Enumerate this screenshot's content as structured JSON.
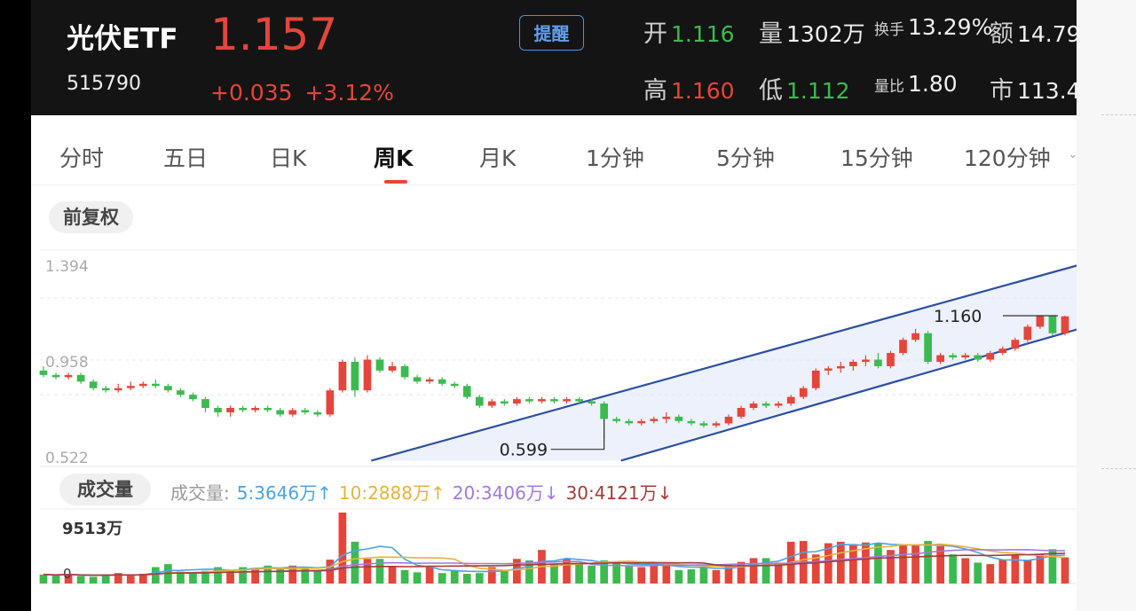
{
  "header": {
    "name": "光伏ETF",
    "code": "515790",
    "price": "1.157",
    "change": "+0.035",
    "change_pct": "+3.12%",
    "alert_button": "提醒",
    "stats": {
      "open_label": "开",
      "open": "1.116",
      "volume_label": "量",
      "volume": "1302万",
      "turnover_label": "换手",
      "turnover": "13.29%",
      "amount_label": "额",
      "amount": "14.79",
      "high_label": "高",
      "high": "1.160",
      "low_label": "低",
      "low": "1.112",
      "vol_ratio_label": "量比",
      "vol_ratio": "1.80",
      "mktcap_label": "市",
      "mktcap": "113.4"
    }
  },
  "tabs": [
    "分时",
    "五日",
    "日K",
    "周K",
    "月K",
    "1分钟",
    "5分钟",
    "15分钟",
    "120分钟"
  ],
  "active_tab": "周K",
  "adjust_pill": "前复权",
  "volume_pill": "成交量",
  "price_axis": [
    "1.394",
    "0.958",
    "0.522"
  ],
  "markers": {
    "high": "1.160",
    "low": "0.599"
  },
  "volume": {
    "label": "成交量:",
    "ma5": "5:3646万↑",
    "ma10": "10:2888万↑",
    "ma20": "20:3406万↓",
    "ma30": "30:4121万↓",
    "max": "9513万",
    "zero": "0"
  },
  "colors": {
    "up": "#e5453a",
    "down": "#3cba50",
    "ma5": "#4aa3e8",
    "ma10": "#e8b23a",
    "ma20": "#a07ae0",
    "ma30": "#a33b3b",
    "channel": "#2c4fa3"
  },
  "chart_data": {
    "type": "candlestick",
    "period": "weekly",
    "ylim": [
      0.522,
      1.394
    ],
    "candles": [
      [
        0.91,
        0.89,
        0.93,
        0.88
      ],
      [
        0.89,
        0.88,
        0.9,
        0.87
      ],
      [
        0.88,
        0.89,
        0.9,
        0.87
      ],
      [
        0.89,
        0.86,
        0.9,
        0.85
      ],
      [
        0.86,
        0.83,
        0.87,
        0.82
      ],
      [
        0.83,
        0.82,
        0.84,
        0.81
      ],
      [
        0.82,
        0.83,
        0.85,
        0.81
      ],
      [
        0.83,
        0.84,
        0.86,
        0.82
      ],
      [
        0.84,
        0.85,
        0.86,
        0.83
      ],
      [
        0.85,
        0.84,
        0.87,
        0.83
      ],
      [
        0.84,
        0.82,
        0.85,
        0.81
      ],
      [
        0.82,
        0.8,
        0.83,
        0.79
      ],
      [
        0.8,
        0.78,
        0.81,
        0.77
      ],
      [
        0.78,
        0.74,
        0.79,
        0.72
      ],
      [
        0.74,
        0.72,
        0.75,
        0.7
      ],
      [
        0.72,
        0.74,
        0.75,
        0.7
      ],
      [
        0.74,
        0.73,
        0.75,
        0.72
      ],
      [
        0.73,
        0.74,
        0.75,
        0.72
      ],
      [
        0.74,
        0.73,
        0.75,
        0.72
      ],
      [
        0.73,
        0.71,
        0.74,
        0.7
      ],
      [
        0.71,
        0.73,
        0.74,
        0.7
      ],
      [
        0.73,
        0.72,
        0.74,
        0.71
      ],
      [
        0.72,
        0.71,
        0.73,
        0.7
      ],
      [
        0.71,
        0.82,
        0.83,
        0.7
      ],
      [
        0.82,
        0.95,
        0.96,
        0.81
      ],
      [
        0.95,
        0.82,
        0.97,
        0.79
      ],
      [
        0.82,
        0.96,
        0.98,
        0.81
      ],
      [
        0.96,
        0.91,
        0.97,
        0.9
      ],
      [
        0.91,
        0.93,
        0.95,
        0.9
      ],
      [
        0.93,
        0.88,
        0.94,
        0.87
      ],
      [
        0.88,
        0.86,
        0.89,
        0.85
      ],
      [
        0.86,
        0.87,
        0.88,
        0.85
      ],
      [
        0.87,
        0.85,
        0.88,
        0.84
      ],
      [
        0.85,
        0.84,
        0.86,
        0.83
      ],
      [
        0.84,
        0.79,
        0.85,
        0.78
      ],
      [
        0.79,
        0.75,
        0.8,
        0.74
      ],
      [
        0.75,
        0.77,
        0.78,
        0.74
      ],
      [
        0.77,
        0.76,
        0.78,
        0.75
      ],
      [
        0.76,
        0.78,
        0.79,
        0.75
      ],
      [
        0.78,
        0.77,
        0.79,
        0.76
      ],
      [
        0.77,
        0.78,
        0.79,
        0.76
      ],
      [
        0.78,
        0.77,
        0.79,
        0.76
      ],
      [
        0.77,
        0.78,
        0.79,
        0.76
      ],
      [
        0.78,
        0.77,
        0.79,
        0.76
      ],
      [
        0.77,
        0.76,
        0.78,
        0.75
      ],
      [
        0.76,
        0.69,
        0.77,
        0.6
      ],
      [
        0.69,
        0.68,
        0.7,
        0.67
      ],
      [
        0.68,
        0.67,
        0.69,
        0.66
      ],
      [
        0.67,
        0.68,
        0.69,
        0.66
      ],
      [
        0.68,
        0.69,
        0.7,
        0.67
      ],
      [
        0.69,
        0.7,
        0.72,
        0.67
      ],
      [
        0.7,
        0.68,
        0.71,
        0.67
      ],
      [
        0.68,
        0.67,
        0.69,
        0.66
      ],
      [
        0.67,
        0.66,
        0.68,
        0.65
      ],
      [
        0.66,
        0.67,
        0.68,
        0.65
      ],
      [
        0.67,
        0.7,
        0.71,
        0.66
      ],
      [
        0.7,
        0.74,
        0.75,
        0.69
      ],
      [
        0.74,
        0.76,
        0.77,
        0.73
      ],
      [
        0.76,
        0.75,
        0.77,
        0.74
      ],
      [
        0.75,
        0.76,
        0.77,
        0.74
      ],
      [
        0.76,
        0.79,
        0.8,
        0.75
      ],
      [
        0.79,
        0.83,
        0.84,
        0.78
      ],
      [
        0.83,
        0.91,
        0.92,
        0.82
      ],
      [
        0.91,
        0.92,
        0.93,
        0.89
      ],
      [
        0.92,
        0.93,
        0.95,
        0.9
      ],
      [
        0.93,
        0.95,
        0.96,
        0.91
      ],
      [
        0.95,
        0.96,
        0.98,
        0.93
      ],
      [
        0.96,
        0.93,
        0.99,
        0.92
      ],
      [
        0.93,
        0.99,
        1.0,
        0.92
      ],
      [
        0.99,
        1.05,
        1.06,
        0.98
      ],
      [
        1.05,
        1.08,
        1.1,
        1.04
      ],
      [
        1.08,
        0.95,
        1.09,
        0.94
      ],
      [
        0.95,
        0.98,
        0.99,
        0.94
      ],
      [
        0.98,
        0.97,
        0.99,
        0.96
      ],
      [
        0.97,
        0.98,
        0.99,
        0.96
      ],
      [
        0.98,
        0.96,
        0.99,
        0.95
      ],
      [
        0.96,
        0.99,
        1.0,
        0.95
      ],
      [
        0.99,
        1.01,
        1.02,
        0.98
      ],
      [
        1.01,
        1.05,
        1.06,
        1.0
      ],
      [
        1.05,
        1.11,
        1.12,
        1.04
      ],
      [
        1.11,
        1.16,
        1.16,
        1.1
      ],
      [
        1.16,
        1.08,
        1.16,
        1.07
      ],
      [
        1.08,
        1.157,
        1.16,
        1.07
      ]
    ],
    "volume_ylim": [
      0,
      9513
    ],
    "volumes": [
      1200,
      1100,
      1300,
      1000,
      900,
      1200,
      1400,
      1100,
      1300,
      2200,
      2600,
      1600,
      1500,
      1700,
      2200,
      1800,
      2200,
      2100,
      2400,
      1900,
      2400,
      2200,
      1600,
      3200,
      9513,
      5600,
      3300,
      3300,
      2300,
      1800,
      1500,
      2200,
      1400,
      1800,
      1300,
      1400,
      2200,
      1700,
      3300,
      3100,
      4500,
      2600,
      3300,
      2600,
      2400,
      3100,
      2800,
      2300,
      2200,
      2600,
      2500,
      1800,
      1900,
      2100,
      1800,
      2500,
      2900,
      3400,
      3400,
      2800,
      5600,
      5700,
      3900,
      5400,
      5600,
      5300,
      5500,
      5400,
      4500,
      5200,
      5200,
      5700,
      5000,
      3900,
      3400,
      2800,
      2600,
      3200,
      3800,
      3100,
      4000,
      4600,
      3500
    ],
    "high_marker": 1.16,
    "low_marker": 0.599
  }
}
